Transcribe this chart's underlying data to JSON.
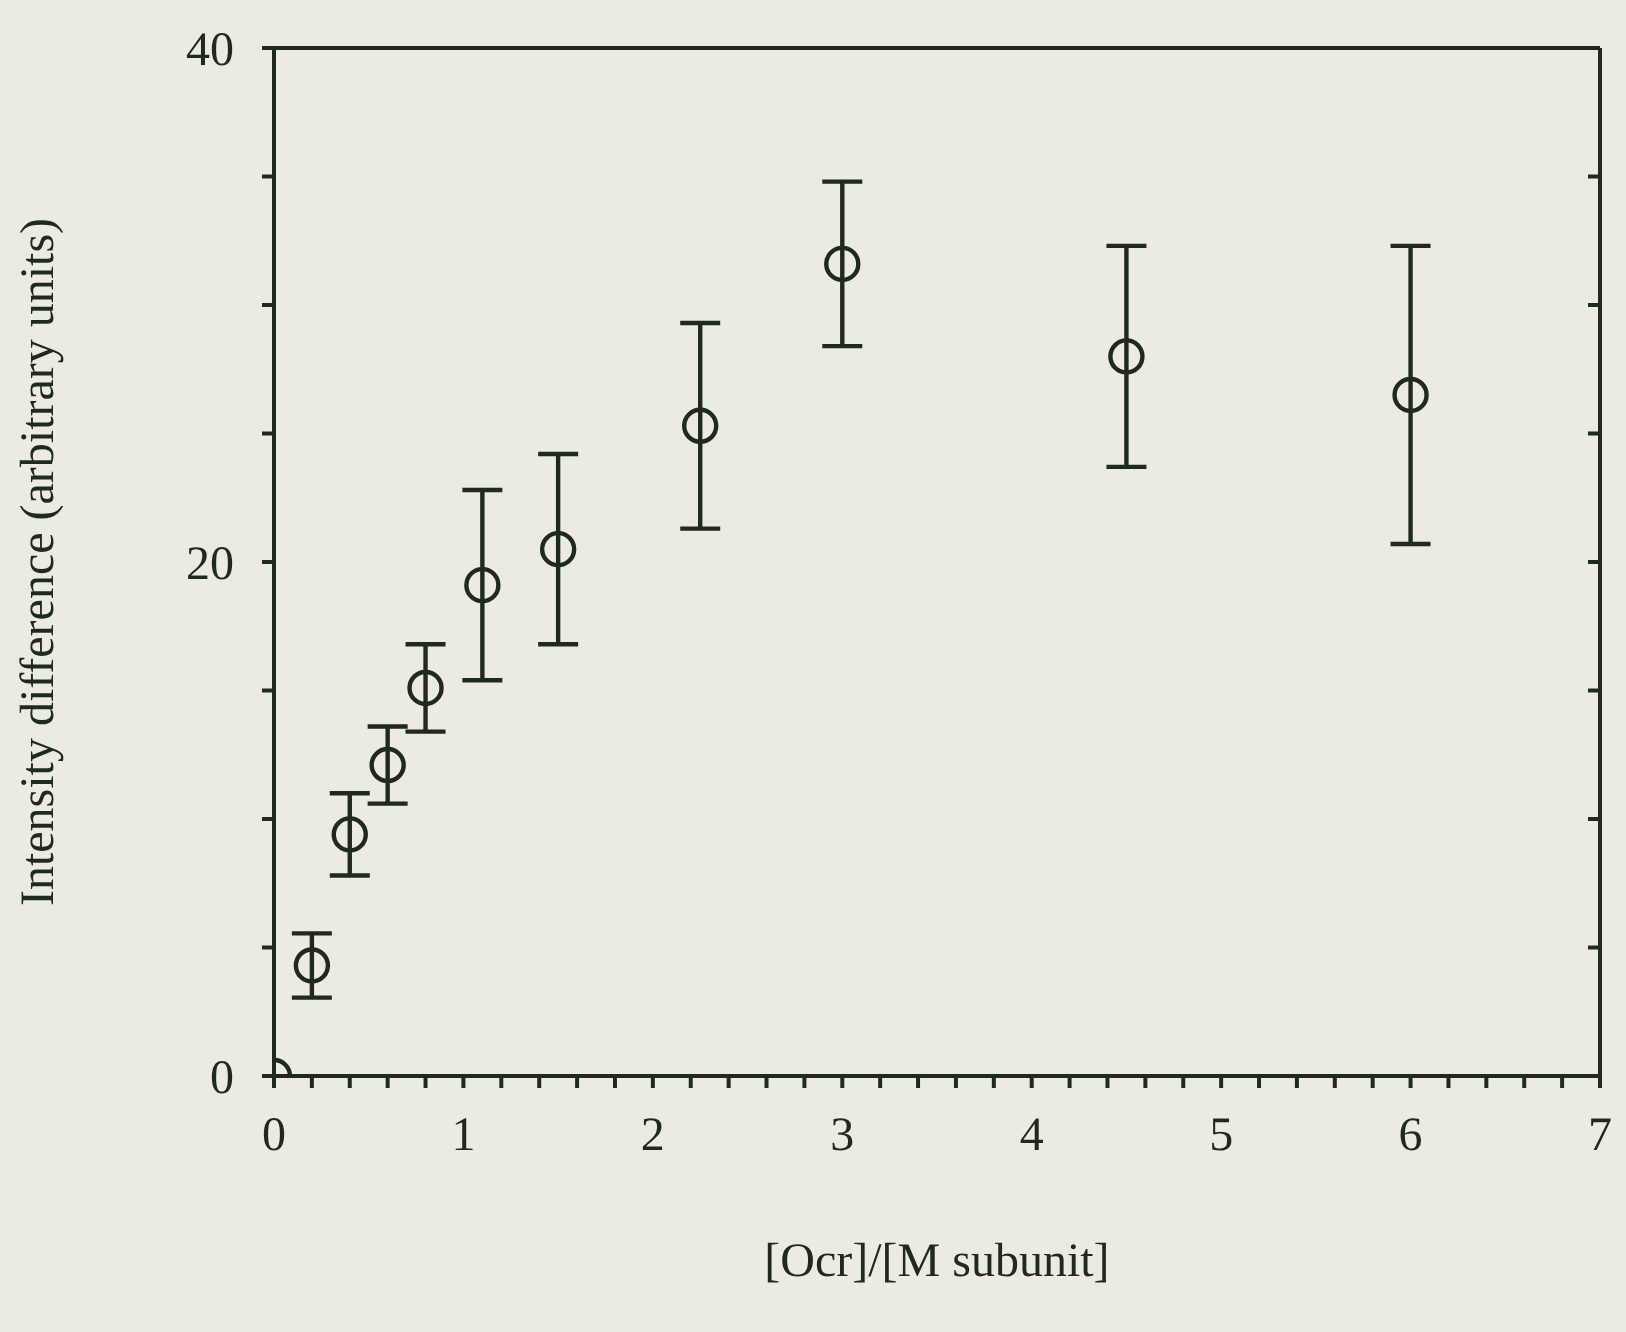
{
  "chart_data": {
    "type": "scatter",
    "xlabel": "[Ocr]/[M subunit]",
    "ylabel": "Intensity difference (arbitrary units)",
    "x": [
      0,
      0.2,
      0.4,
      0.6,
      0.8,
      1.1,
      1.5,
      2.25,
      3,
      4.5,
      6
    ],
    "values": [
      0,
      4.3,
      9.4,
      12.1,
      15.1,
      19.1,
      20.5,
      25.3,
      31.6,
      28.0,
      26.5
    ],
    "errors": [
      null,
      1.25,
      1.6,
      1.5,
      1.7,
      3.7,
      3.7,
      4,
      3.2,
      4.3,
      5.8
    ],
    "color": "#1f2a1f",
    "marker": "circle",
    "grid": false,
    "xlim": [
      0,
      7
    ],
    "xticks": [
      0,
      {
        "value": 0.2,
        "label": null
      },
      {
        "value": 0.4,
        "label": null
      },
      {
        "value": 0.6,
        "label": null
      },
      {
        "value": 0.8,
        "label": null
      },
      1,
      {
        "value": 1.2,
        "label": null
      },
      {
        "value": 1.4,
        "label": null
      },
      {
        "value": 1.6,
        "label": null
      },
      {
        "value": 1.8,
        "label": null
      },
      2,
      {
        "value": 2.2,
        "label": null
      },
      {
        "value": 2.4,
        "label": null
      },
      {
        "value": 2.6,
        "label": null
      },
      {
        "value": 2.8,
        "label": null
      },
      3,
      {
        "value": 3.2,
        "label": null
      },
      {
        "value": 3.4,
        "label": null
      },
      {
        "value": 3.6,
        "label": null
      },
      {
        "value": 3.8,
        "label": null
      },
      4,
      {
        "value": 4.2,
        "label": null
      },
      {
        "value": 4.4,
        "label": null
      },
      {
        "value": 4.6,
        "label": null
      },
      {
        "value": 4.8,
        "label": null
      },
      5,
      {
        "value": 5.2,
        "label": null
      },
      {
        "value": 5.4,
        "label": null
      },
      {
        "value": 5.6,
        "label": null
      },
      {
        "value": 5.8,
        "label": null
      },
      6,
      {
        "value": 6.2,
        "label": null
      },
      {
        "value": 6.4,
        "label": null
      },
      {
        "value": 6.6,
        "label": null
      },
      {
        "value": 6.8,
        "label": null
      },
      7
    ],
    "ylim": [
      0,
      40
    ],
    "yticks": [
      0,
      {
        "value": 5,
        "label": null
      },
      {
        "value": 10,
        "label": null
      },
      {
        "value": 15,
        "label": null
      },
      20,
      {
        "value": 25,
        "label": null
      },
      {
        "value": 30,
        "label": null
      },
      {
        "value": 35,
        "label": null
      },
      40
    ]
  }
}
